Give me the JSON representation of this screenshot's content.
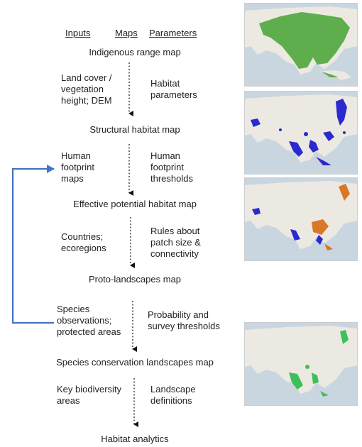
{
  "headers": {
    "inputs": "Inputs",
    "maps": "Maps",
    "parameters": "Parameters"
  },
  "stages": [
    "Indigenous range map",
    "Structural habitat map",
    "Effective potential habitat map",
    "Proto-landscapes map",
    "Species conservation landscapes map",
    "Habitat analytics"
  ],
  "steps": [
    {
      "input": "Land cover /\nvegetation\nheight; DEM",
      "parameter": "Habitat\nparameters"
    },
    {
      "input": "Human\nfootprint\nmaps",
      "parameter": "Human\nfootprint\nthresholds"
    },
    {
      "input": "Countries;\necoregions",
      "parameter": "Rules about\npatch size &\nconnectivity"
    },
    {
      "input": "Species\nobservations;\nprotected areas",
      "parameter": "Probability and\nsurvey thresholds"
    },
    {
      "input": "Key biodiversity\nareas",
      "parameter": "Landscape\ndefinitions"
    }
  ],
  "colors": {
    "feedback_arrow": "#4472c4",
    "range_green": "#5fae4e",
    "structural_blue": "#2a2ad0",
    "effective_orange": "#d8772a",
    "landscape_green": "#3fbf5a",
    "map_land": "#ece9e2",
    "map_water": "#c9d6e0"
  },
  "icons": [
    "dotted-down-arrow",
    "feedback-loop-arrow"
  ]
}
